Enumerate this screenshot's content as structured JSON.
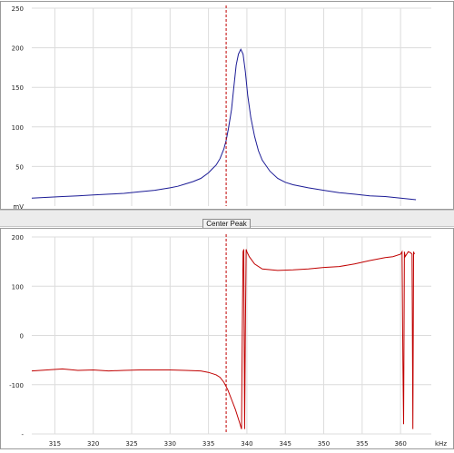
{
  "toolbar": {
    "center_peak_label": "Center Peak"
  },
  "chart_data": [
    {
      "type": "line",
      "title": "",
      "xlabel": "",
      "ylabel": "",
      "xlim": [
        312,
        364
      ],
      "ylim": [
        0,
        250
      ],
      "x_ticks": [
        315,
        320,
        325,
        330,
        335,
        340,
        345,
        350,
        355,
        360
      ],
      "x_unit_label": "kHz",
      "y_ticks": [
        50,
        100,
        150,
        200,
        250
      ],
      "y_tick_labels": [
        "50",
        "100",
        "150",
        "200",
        "250"
      ],
      "y_unit_label": "mV",
      "grid": true,
      "marker_x": 337.3,
      "colors": {
        "series": "#1c1c96",
        "marker": "#c00000",
        "grid": "#dcdcdc"
      },
      "series": [
        {
          "x": [
            312,
            314,
            316,
            318,
            320,
            322,
            324,
            326,
            328,
            330,
            331,
            332,
            333,
            334,
            335,
            335.5,
            336,
            336.5,
            337,
            337.3,
            337.6,
            338,
            338.3,
            338.6,
            338.9,
            339.2,
            339.5,
            339.8,
            340.1,
            340.5,
            341,
            341.5,
            342,
            343,
            344,
            345,
            346,
            348,
            350,
            352,
            354,
            356,
            358,
            360,
            362
          ],
          "values": [
            10,
            11,
            12,
            13,
            14,
            15,
            16,
            18,
            20,
            23,
            25,
            28,
            31,
            35,
            42,
            47,
            52,
            60,
            72,
            83,
            98,
            122,
            150,
            178,
            192,
            198,
            192,
            170,
            140,
            112,
            88,
            70,
            58,
            44,
            35,
            30,
            27,
            23,
            20,
            17,
            15,
            13,
            12,
            10,
            8
          ]
        }
      ]
    },
    {
      "type": "line",
      "title": "",
      "xlabel": "",
      "ylabel": "",
      "xlim": [
        312,
        364
      ],
      "ylim": [
        -200,
        200
      ],
      "x_ticks": [
        315,
        320,
        325,
        330,
        335,
        340,
        345,
        350,
        355,
        360
      ],
      "x_unit_label": "kHz",
      "y_ticks": [
        -200,
        -100,
        0,
        100,
        200
      ],
      "y_tick_labels": [
        "-",
        "-100",
        "0",
        "100",
        "200"
      ],
      "grid": true,
      "marker_x": 337.3,
      "colors": {
        "series": "#c00000",
        "marker": "#c00000",
        "grid": "#dcdcdc"
      },
      "series": [
        {
          "x": [
            312,
            314,
            316,
            318,
            320,
            322,
            324,
            326,
            328,
            330,
            332,
            334,
            335,
            336,
            336.5,
            337,
            337.5,
            338,
            338.5,
            339,
            339.3,
            339.4,
            339.5,
            339.6,
            339.7,
            339.8,
            339.9,
            340,
            340.3,
            341,
            342,
            344,
            346,
            348,
            350,
            352,
            354,
            356,
            358,
            359,
            360,
            360.2,
            360.3,
            360.4,
            360.5,
            360.6,
            360.8,
            361,
            361.3,
            361.5,
            361.6,
            361.7,
            361.8
          ],
          "values": [
            -72,
            -70,
            -68,
            -71,
            -70,
            -72,
            -71,
            -70,
            -70,
            -70,
            -71,
            -72,
            -75,
            -80,
            -85,
            -95,
            -110,
            -130,
            -150,
            -175,
            -190,
            0,
            170,
            175,
            -190,
            0,
            175,
            170,
            160,
            145,
            135,
            132,
            133,
            135,
            138,
            140,
            145,
            152,
            158,
            160,
            165,
            170,
            -50,
            -180,
            170,
            160,
            165,
            170,
            168,
            165,
            -190,
            170,
            165
          ]
        }
      ]
    }
  ]
}
